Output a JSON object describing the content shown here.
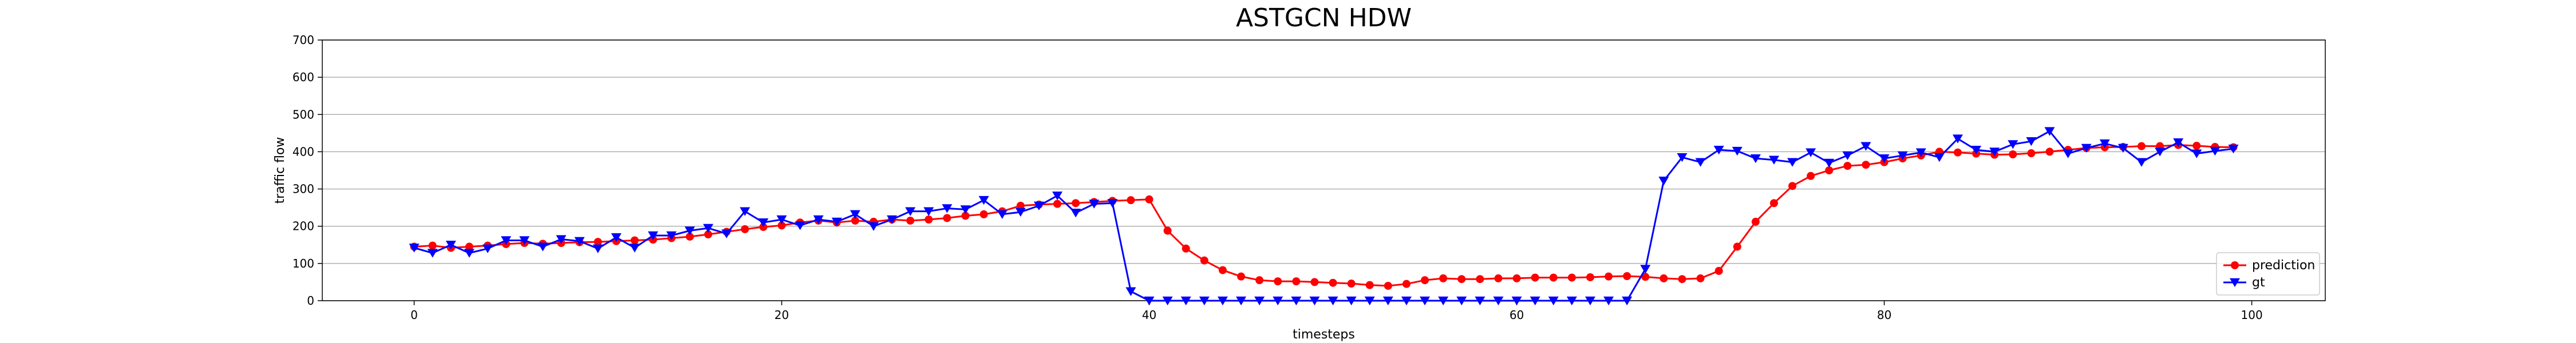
{
  "chart_data": {
    "type": "line",
    "title": "ASTGCN HDW",
    "xlabel": "timesteps",
    "ylabel": "traffic flow",
    "xlim": [
      -5,
      104
    ],
    "ylim": [
      0,
      700
    ],
    "xticks": [
      0,
      20,
      40,
      60,
      80,
      100
    ],
    "yticks": [
      0,
      100,
      200,
      300,
      400,
      500,
      600,
      700
    ],
    "grid": "horizontal",
    "legend_position": "lower-right",
    "series": [
      {
        "name": "prediction",
        "color": "#ff0000",
        "marker": "circle",
        "x": [
          0,
          1,
          2,
          3,
          4,
          5,
          6,
          7,
          8,
          9,
          10,
          11,
          12,
          13,
          14,
          15,
          16,
          17,
          18,
          19,
          20,
          21,
          22,
          23,
          24,
          25,
          26,
          27,
          28,
          29,
          30,
          31,
          32,
          33,
          34,
          35,
          36,
          37,
          38,
          39,
          40,
          41,
          42,
          43,
          44,
          45,
          46,
          47,
          48,
          49,
          50,
          51,
          52,
          53,
          54,
          55,
          56,
          57,
          58,
          59,
          60,
          61,
          62,
          63,
          64,
          65,
          66,
          67,
          68,
          69,
          70,
          71,
          72,
          73,
          74,
          75,
          76,
          77,
          78,
          79,
          80,
          81,
          82,
          83,
          84,
          85,
          86,
          87,
          88,
          89,
          90,
          91,
          92,
          93,
          94,
          95,
          96,
          97,
          98,
          99
        ],
        "values": [
          145,
          148,
          142,
          145,
          148,
          152,
          155,
          153,
          155,
          157,
          158,
          160,
          162,
          164,
          168,
          172,
          178,
          185,
          192,
          198,
          202,
          210,
          215,
          210,
          215,
          212,
          218,
          215,
          218,
          222,
          228,
          232,
          240,
          255,
          258,
          260,
          262,
          265,
          268,
          270,
          272,
          188,
          140,
          108,
          82,
          65,
          55,
          52,
          52,
          50,
          48,
          46,
          42,
          40,
          45,
          55,
          60,
          58,
          58,
          60,
          60,
          62,
          62,
          62,
          63,
          65,
          66,
          64,
          60,
          58,
          60,
          80,
          145,
          212,
          262,
          308,
          335,
          350,
          362,
          365,
          372,
          382,
          390,
          400,
          398,
          395,
          392,
          393,
          396,
          400,
          405,
          410,
          412,
          413,
          415,
          415,
          418,
          416,
          413,
          412
        ]
      },
      {
        "name": "gt",
        "color": "#0000ff",
        "marker": "triangle-down",
        "x": [
          0,
          1,
          2,
          3,
          4,
          5,
          6,
          7,
          8,
          9,
          10,
          11,
          12,
          13,
          14,
          15,
          16,
          17,
          18,
          19,
          20,
          21,
          22,
          23,
          24,
          25,
          26,
          27,
          28,
          29,
          30,
          31,
          32,
          33,
          34,
          35,
          36,
          37,
          38,
          39,
          40,
          41,
          42,
          43,
          44,
          45,
          46,
          47,
          48,
          49,
          50,
          51,
          52,
          53,
          54,
          55,
          56,
          57,
          58,
          59,
          60,
          61,
          62,
          63,
          64,
          65,
          66,
          67,
          68,
          69,
          70,
          71,
          72,
          73,
          74,
          75,
          76,
          77,
          78,
          79,
          80,
          81,
          82,
          83,
          84,
          85,
          86,
          87,
          88,
          89,
          90,
          91,
          92,
          93,
          94,
          95,
          96,
          97,
          98,
          99
        ],
        "values": [
          142,
          128,
          150,
          128,
          140,
          162,
          162,
          145,
          165,
          160,
          140,
          170,
          142,
          175,
          175,
          188,
          195,
          180,
          240,
          210,
          218,
          202,
          218,
          212,
          232,
          200,
          218,
          240,
          240,
          248,
          245,
          270,
          232,
          238,
          255,
          282,
          236,
          260,
          262,
          25,
          0,
          0,
          0,
          0,
          0,
          0,
          0,
          0,
          0,
          0,
          0,
          0,
          0,
          0,
          0,
          0,
          0,
          0,
          0,
          0,
          0,
          0,
          0,
          0,
          0,
          0,
          0,
          85,
          322,
          385,
          372,
          405,
          402,
          382,
          378,
          372,
          398,
          370,
          390,
          415,
          382,
          390,
          398,
          385,
          435,
          405,
          400,
          420,
          428,
          455,
          395,
          410,
          422,
          410,
          372,
          400,
          425,
          395,
          402,
          408
        ]
      }
    ]
  }
}
